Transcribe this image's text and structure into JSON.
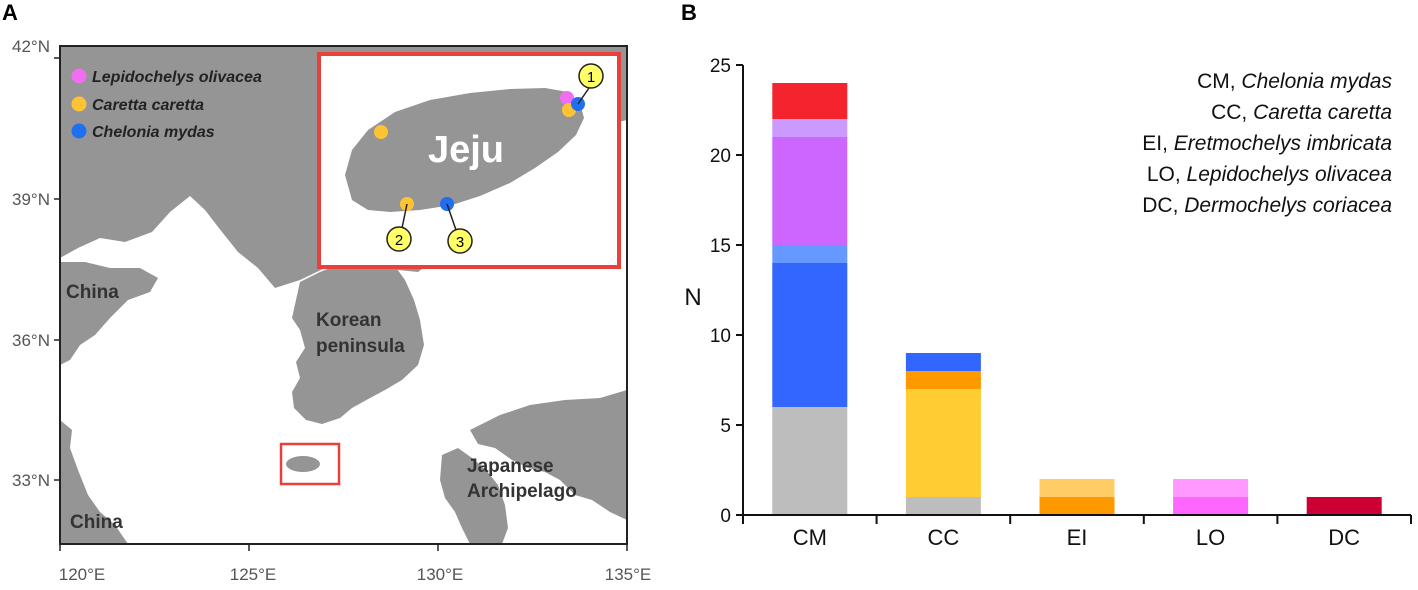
{
  "panels": {
    "a_label": "A",
    "b_label": "B"
  },
  "map": {
    "lat_ticks": [
      "42°N",
      "39°N",
      "36°N",
      "33°N"
    ],
    "lon_ticks": [
      "120°E",
      "125°E",
      "130°E",
      "135°E"
    ],
    "places": {
      "china_north": "China",
      "china_south": "China",
      "korea_line1": "Korean",
      "korea_line2": "peninsula",
      "japan_line1": "Japanese",
      "japan_line2": "Archipelago"
    },
    "legend": [
      {
        "name": "Lepidochelys olivacea",
        "color": "#f06ef0"
      },
      {
        "name": "Caretta caretta",
        "color": "#fdc335"
      },
      {
        "name": "Chelonia mydas",
        "color": "#1f6ff0"
      }
    ],
    "inset_title": "Jeju",
    "sites": [
      "1",
      "2",
      "3"
    ],
    "colors": {
      "land": "#959595",
      "frame": "#e8403a",
      "site_fill": "#ffff66"
    }
  },
  "chart_data": {
    "type": "bar",
    "stacked": true,
    "categories": [
      "CM",
      "CC",
      "EI",
      "LO",
      "DC"
    ],
    "ylabel": "N",
    "ylim": [
      0,
      25
    ],
    "yticks": [
      0,
      5,
      10,
      15,
      20,
      25
    ],
    "stacks": [
      {
        "category": "CM",
        "segments": [
          {
            "value": 6,
            "color": "#bdbdbd"
          },
          {
            "value": 8,
            "color": "#3366ff"
          },
          {
            "value": 1,
            "color": "#6699ff"
          },
          {
            "value": 6,
            "color": "#cc66ff"
          },
          {
            "value": 1,
            "color": "#cc99ff"
          },
          {
            "value": 2,
            "color": "#f4242e"
          }
        ]
      },
      {
        "category": "CC",
        "segments": [
          {
            "value": 1,
            "color": "#bdbdbd"
          },
          {
            "value": 6,
            "color": "#ffcc33"
          },
          {
            "value": 1,
            "color": "#ff9900"
          },
          {
            "value": 1,
            "color": "#3366ff"
          }
        ]
      },
      {
        "category": "EI",
        "segments": [
          {
            "value": 1,
            "color": "#ff9900"
          },
          {
            "value": 1,
            "color": "#ffcc66"
          }
        ]
      },
      {
        "category": "LO",
        "segments": [
          {
            "value": 1,
            "color": "#ff66ff"
          },
          {
            "value": 1,
            "color": "#ff99ff"
          }
        ]
      },
      {
        "category": "DC",
        "segments": [
          {
            "value": 1,
            "color": "#cc0033"
          }
        ]
      }
    ],
    "species_legend": [
      {
        "abbr": "CM,",
        "name": "Chelonia mydas"
      },
      {
        "abbr": "CC,",
        "name": "Caretta caretta"
      },
      {
        "abbr": "EI,",
        "name": "Eretmochelys imbricata"
      },
      {
        "abbr": "LO,",
        "name": "Lepidochelys olivacea"
      },
      {
        "abbr": "DC,",
        "name": "Dermochelys coriacea"
      }
    ]
  }
}
